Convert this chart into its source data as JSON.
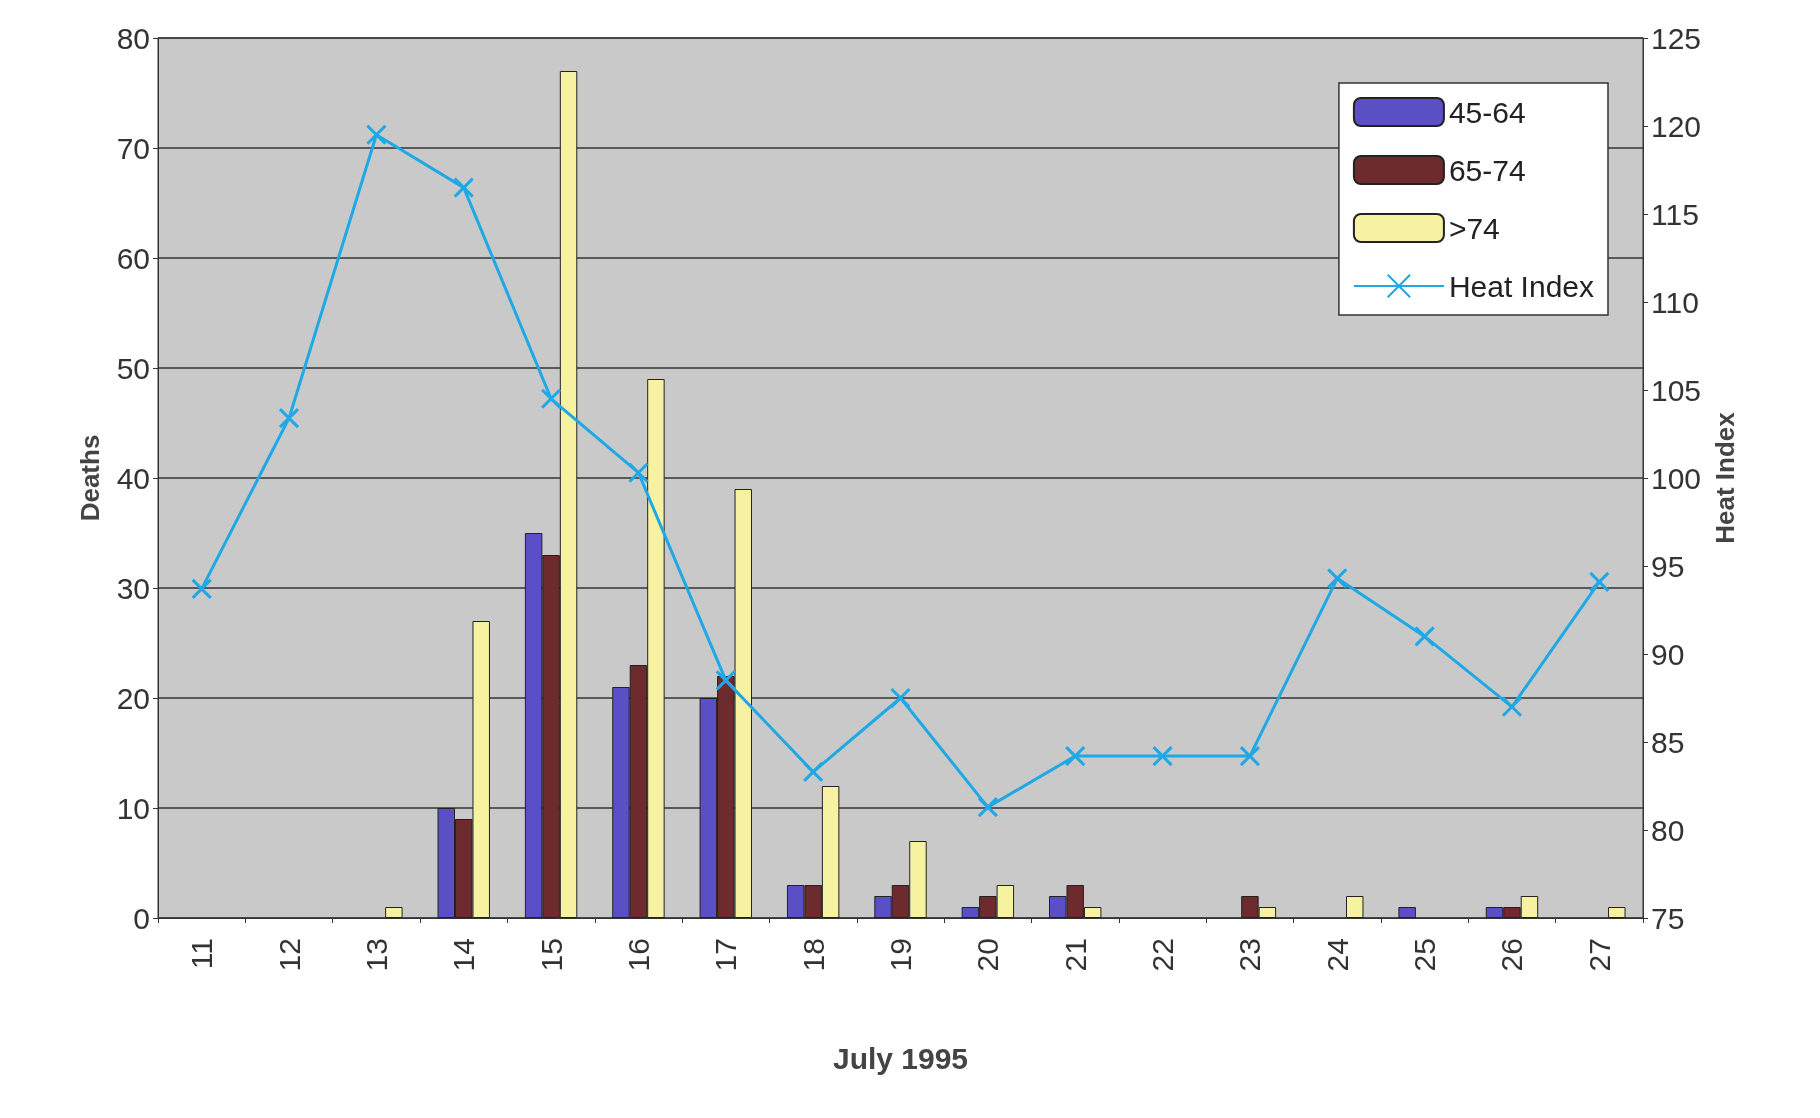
{
  "chart_data": {
    "type": "bar",
    "xlabel": "July 1995",
    "ylabel": "Deaths",
    "y2label": "Heat Index",
    "categories": [
      "11",
      "12",
      "13",
      "14",
      "15",
      "16",
      "17",
      "18",
      "19",
      "20",
      "21",
      "22",
      "23",
      "24",
      "25",
      "26",
      "27"
    ],
    "series": [
      {
        "name": "45-64",
        "color": "#5a4fc4",
        "values": [
          0,
          0,
          0,
          10,
          35,
          21,
          20,
          3,
          2,
          1,
          2,
          0,
          0,
          0,
          1,
          1,
          0
        ]
      },
      {
        "name": "65-74",
        "color": "#6e2b2e",
        "values": [
          0,
          0,
          0,
          9,
          33,
          23,
          22,
          3,
          3,
          2,
          3,
          0,
          2,
          0,
          0,
          1,
          0
        ]
      },
      {
        "name": ">74",
        "color": "#f6f2a2",
        "values": [
          0,
          0,
          1,
          27,
          77,
          49,
          39,
          12,
          7,
          3,
          1,
          0,
          1,
          2,
          0,
          2,
          1
        ]
      },
      {
        "name": "Heat Index",
        "type": "line",
        "axis": "y2",
        "color": "#1fa8e6",
        "marker": "cross",
        "values": [
          93.7,
          103.4,
          119.5,
          116.5,
          104.5,
          100.3,
          88.5,
          83.3,
          87.5,
          81.3,
          84.2,
          84.2,
          84.2,
          94.3,
          91,
          87,
          94.1
        ]
      }
    ],
    "ylim": [
      0,
      80
    ],
    "yticks": [
      0,
      10,
      20,
      30,
      40,
      50,
      60,
      70,
      80
    ],
    "y2lim": [
      75,
      125
    ],
    "y2ticks": [
      75,
      80,
      85,
      90,
      95,
      100,
      105,
      110,
      115,
      120,
      125
    ],
    "grid": "y",
    "legend": "top right"
  }
}
